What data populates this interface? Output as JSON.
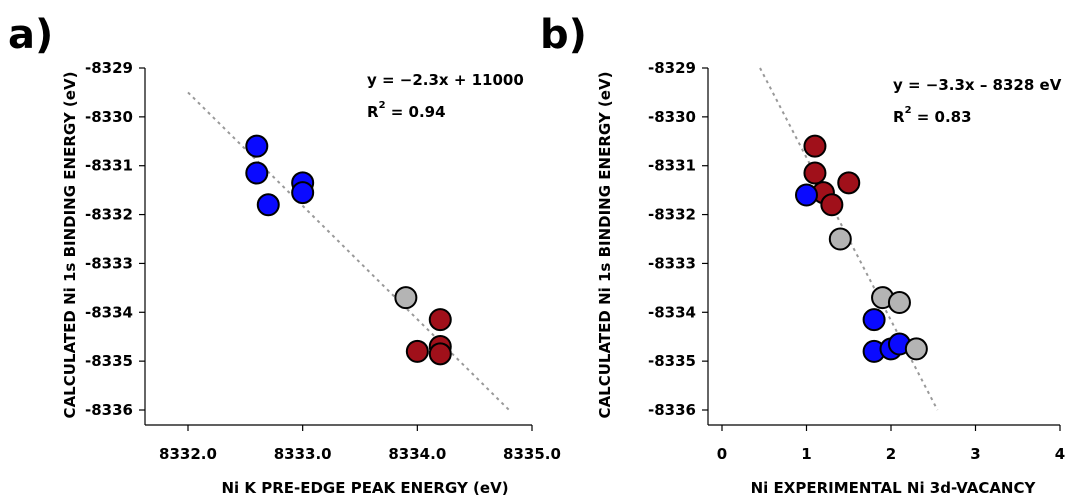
{
  "colors": {
    "blue": "#0a0aff",
    "red": "#a0101a",
    "gray": "#b4b4b4",
    "fit_line": "#999999"
  },
  "chart_data": [
    {
      "type": "scatter",
      "panel_label": "a)",
      "xlabel": "Ni K PRE-EDGE PEAK ENERGY (eV)",
      "ylabel": "CALCULATED Ni 1s BINDING ENERGY (eV)",
      "xlim": [
        8332.0,
        8335.0
      ],
      "ylim": [
        -8336.3,
        -8329.0
      ],
      "xticks": [
        8332.0,
        8333.0,
        8334.0,
        8335.0
      ],
      "xtick_labels": [
        "8332.0",
        "8333.0",
        "8334.0",
        "8335.0"
      ],
      "yticks": [
        -8329,
        -8330,
        -8331,
        -8332,
        -8333,
        -8334,
        -8335,
        -8336
      ],
      "ytick_labels": [
        "-8329",
        "-8330",
        "-8331",
        "-8332",
        "-8333",
        "-8334",
        "-8335",
        "-8336"
      ],
      "grid": false,
      "fit": {
        "x": [
          8332.0,
          8334.8
        ],
        "y": [
          -8329.5,
          -8336.0
        ]
      },
      "annotation": {
        "equation": "y = −2.3x + 11000",
        "r2_prefix": "R",
        "r2_sup": "2",
        "r2_value": " = 0.94"
      },
      "series": [
        {
          "color": "blue",
          "points": [
            [
              8332.6,
              -8330.6
            ],
            [
              8332.6,
              -8331.15
            ],
            [
              8332.7,
              -8331.8
            ],
            [
              8333.0,
              -8331.35
            ],
            [
              8333.0,
              -8331.55
            ]
          ]
        },
        {
          "color": "gray",
          "points": [
            [
              8333.9,
              -8333.7
            ]
          ]
        },
        {
          "color": "red",
          "points": [
            [
              8334.0,
              -8334.8
            ],
            [
              8334.2,
              -8334.15
            ],
            [
              8334.2,
              -8334.7
            ],
            [
              8334.2,
              -8334.85
            ]
          ]
        }
      ]
    },
    {
      "type": "scatter",
      "panel_label": "b)",
      "xlabel": "Ni EXPERIMENTAL Ni 3d-VACANCY",
      "ylabel": "CALCULATED Ni 1s BINDING ENERGY (eV)",
      "xlim": [
        -0.1,
        4.0
      ],
      "ylim": [
        -8336.3,
        -8329.0
      ],
      "xticks": [
        0,
        1,
        2,
        3,
        4
      ],
      "xtick_labels": [
        "0",
        "1",
        "2",
        "3",
        "4"
      ],
      "yticks": [
        -8329,
        -8330,
        -8331,
        -8332,
        -8333,
        -8334,
        -8335,
        -8336
      ],
      "ytick_labels": [
        "-8329",
        "-8330",
        "-8331",
        "-8332",
        "-8333",
        "-8334",
        "-8335",
        "-8336"
      ],
      "grid": false,
      "fit": {
        "x": [
          0.45,
          2.55
        ],
        "y": [
          -8329.0,
          -8336.0
        ]
      },
      "annotation": {
        "equation": "y = −3.3x – 8328 eV",
        "r2_prefix": "R",
        "r2_sup": "2",
        "r2_value": " = 0.83"
      },
      "series": [
        {
          "color": "red",
          "points": [
            [
              1.1,
              -8330.6
            ],
            [
              1.1,
              -8331.15
            ],
            [
              1.2,
              -8331.55
            ],
            [
              1.3,
              -8331.8
            ],
            [
              1.5,
              -8331.35
            ]
          ]
        },
        {
          "color": "blue",
          "points": [
            [
              1.0,
              -8331.6
            ],
            [
              1.8,
              -8334.15
            ],
            [
              1.8,
              -8334.8
            ],
            [
              2.0,
              -8334.75
            ],
            [
              2.1,
              -8334.65
            ]
          ]
        },
        {
          "color": "gray",
          "points": [
            [
              1.4,
              -8332.5
            ],
            [
              1.9,
              -8333.7
            ],
            [
              2.1,
              -8333.8
            ],
            [
              2.3,
              -8334.75
            ]
          ]
        }
      ]
    }
  ]
}
